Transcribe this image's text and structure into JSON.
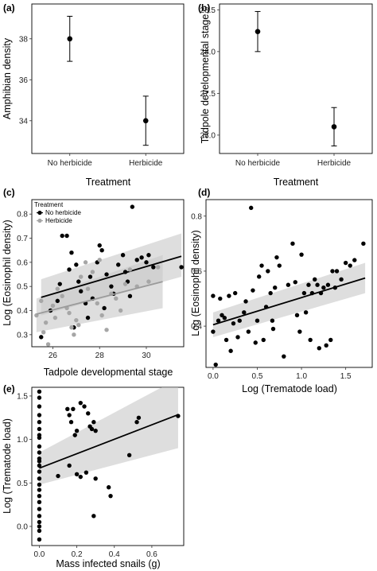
{
  "chart_data": [
    {
      "panel": "(a)",
      "type": "scatter",
      "xlabel": "Treatment",
      "ylabel": "Amphibian density",
      "categories": [
        "No herbicide",
        "Herbicide"
      ],
      "series": [
        {
          "mean": [
            38.0,
            34.0
          ],
          "lower": [
            36.9,
            32.8
          ],
          "upper": [
            39.1,
            35.2
          ]
        }
      ],
      "ylim": [
        32.4,
        39.7
      ],
      "yticks": [
        "34",
        "36",
        "38"
      ],
      "grid": false
    },
    {
      "panel": "(b)",
      "type": "scatter",
      "xlabel": "Treatment",
      "ylabel": "Tadpole developmental stage",
      "categories": [
        "No herbicide",
        "Herbicide"
      ],
      "series": [
        {
          "mean": [
            28.24,
            27.1
          ],
          "lower": [
            28.0,
            26.87
          ],
          "upper": [
            28.48,
            27.33
          ]
        }
      ],
      "ylim": [
        26.78,
        28.57
      ],
      "yticks": [
        "27.0",
        "27.5",
        "28.0",
        "28.5"
      ],
      "grid": false
    },
    {
      "panel": "(c)",
      "type": "scatter",
      "xlabel": "Tadpole developmental stage",
      "ylabel": "Log (Eosinophil density)",
      "xlim": [
        25.1,
        31.6
      ],
      "ylim": [
        0.25,
        0.86
      ],
      "xticks": [
        "26",
        "28",
        "30"
      ],
      "yticks": [
        "0.3",
        "0.4",
        "0.5",
        "0.6",
        "0.7",
        "0.8"
      ],
      "legend": {
        "title": "Treatment",
        "placement": "top-left"
      },
      "series": [
        {
          "name": "No herbicide",
          "color": "#000000",
          "points": [
            [
              25.5,
              0.29
            ],
            [
              25.9,
              0.4
            ],
            [
              26.2,
              0.44
            ],
            [
              26.3,
              0.51
            ],
            [
              26.4,
              0.71
            ],
            [
              26.6,
              0.71
            ],
            [
              26.7,
              0.57
            ],
            [
              26.8,
              0.64
            ],
            [
              27.0,
              0.59
            ],
            [
              27.1,
              0.52
            ],
            [
              27.2,
              0.48
            ],
            [
              27.4,
              0.43
            ],
            [
              27.5,
              0.37
            ],
            [
              27.7,
              0.45
            ],
            [
              27.9,
              0.6
            ],
            [
              28.0,
              0.67
            ],
            [
              28.1,
              0.65
            ],
            [
              28.3,
              0.55
            ],
            [
              28.5,
              0.5
            ],
            [
              28.6,
              0.47
            ],
            [
              28.8,
              0.59
            ],
            [
              29.0,
              0.63
            ],
            [
              29.1,
              0.56
            ],
            [
              29.2,
              0.52
            ],
            [
              29.4,
              0.83
            ],
            [
              29.6,
              0.61
            ],
            [
              29.8,
              0.62
            ],
            [
              30.0,
              0.6
            ],
            [
              30.3,
              0.58
            ],
            [
              31.5,
              0.58
            ],
            [
              26.9,
              0.33
            ],
            [
              28.2,
              0.41
            ],
            [
              29.3,
              0.46
            ],
            [
              27.6,
              0.54
            ],
            [
              30.1,
              0.63
            ]
          ],
          "fit": {
            "x": [
              25.5,
              31.5
            ],
            "y": [
              0.455,
              0.625
            ]
          },
          "ci_lower": [
            0.38,
            0.54
          ],
          "ci_upper": [
            0.53,
            0.72
          ]
        },
        {
          "name": "Herbicide",
          "color": "#a6a6a6",
          "points": [
            [
              25.3,
              0.38
            ],
            [
              25.5,
              0.44
            ],
            [
              25.7,
              0.35
            ],
            [
              25.8,
              0.26
            ],
            [
              26.0,
              0.42
            ],
            [
              26.1,
              0.37
            ],
            [
              26.2,
              0.49
            ],
            [
              26.4,
              0.46
            ],
            [
              26.6,
              0.41
            ],
            [
              26.7,
              0.39
            ],
            [
              26.8,
              0.33
            ],
            [
              26.9,
              0.3
            ],
            [
              27.1,
              0.34
            ],
            [
              27.2,
              0.54
            ],
            [
              27.4,
              0.6
            ],
            [
              27.5,
              0.49
            ],
            [
              27.7,
              0.56
            ],
            [
              27.9,
              0.43
            ],
            [
              28.1,
              0.38
            ],
            [
              28.3,
              0.32
            ],
            [
              28.5,
              0.47
            ],
            [
              28.7,
              0.45
            ],
            [
              28.9,
              0.4
            ],
            [
              29.1,
              0.51
            ],
            [
              29.3,
              0.57
            ],
            [
              29.6,
              0.5
            ],
            [
              30.1,
              0.52
            ],
            [
              30.5,
              0.58
            ],
            [
              25.6,
              0.31
            ],
            [
              27.0,
              0.36
            ],
            [
              28.0,
              0.61
            ]
          ],
          "fit": {
            "x": [
              25.3,
              30.7
            ],
            "y": [
              0.385,
              0.52
            ]
          },
          "ci_lower": [
            0.31,
            0.41
          ],
          "ci_upper": [
            0.45,
            0.63
          ]
        }
      ]
    },
    {
      "panel": "(d)",
      "type": "scatter",
      "xlabel": "Log (Trematode load)",
      "ylabel": "Log (Eosinophil density)",
      "xlim": [
        -0.08,
        1.8
      ],
      "ylim": [
        0.25,
        0.86
      ],
      "xticks": [
        "0.0",
        "0.5",
        "1.0",
        "1.5"
      ],
      "yticks": [
        "0.4",
        "0.6",
        "0.8"
      ],
      "series": [
        {
          "color": "#000000",
          "points": [
            [
              0.0,
              0.51
            ],
            [
              0.0,
              0.38
            ],
            [
              0.03,
              0.26
            ],
            [
              0.06,
              0.42
            ],
            [
              0.08,
              0.5
            ],
            [
              0.1,
              0.44
            ],
            [
              0.13,
              0.43
            ],
            [
              0.15,
              0.35
            ],
            [
              0.18,
              0.51
            ],
            [
              0.2,
              0.31
            ],
            [
              0.23,
              0.41
            ],
            [
              0.25,
              0.52
            ],
            [
              0.3,
              0.42
            ],
            [
              0.35,
              0.45
            ],
            [
              0.37,
              0.49
            ],
            [
              0.4,
              0.38
            ],
            [
              0.43,
              0.83
            ],
            [
              0.45,
              0.53
            ],
            [
              0.48,
              0.34
            ],
            [
              0.5,
              0.42
            ],
            [
              0.52,
              0.58
            ],
            [
              0.55,
              0.62
            ],
            [
              0.57,
              0.35
            ],
            [
              0.6,
              0.47
            ],
            [
              0.62,
              0.6
            ],
            [
              0.65,
              0.52
            ],
            [
              0.67,
              0.42
            ],
            [
              0.7,
              0.54
            ],
            [
              0.72,
              0.65
            ],
            [
              0.75,
              0.62
            ],
            [
              0.8,
              0.29
            ],
            [
              0.85,
              0.55
            ],
            [
              0.9,
              0.7
            ],
            [
              0.93,
              0.56
            ],
            [
              0.95,
              0.44
            ],
            [
              0.98,
              0.38
            ],
            [
              1.0,
              0.66
            ],
            [
              1.03,
              0.52
            ],
            [
              1.05,
              0.45
            ],
            [
              1.08,
              0.55
            ],
            [
              1.1,
              0.35
            ],
            [
              1.12,
              0.52
            ],
            [
              1.15,
              0.57
            ],
            [
              1.18,
              0.55
            ],
            [
              1.2,
              0.32
            ],
            [
              1.22,
              0.52
            ],
            [
              1.25,
              0.54
            ],
            [
              1.28,
              0.33
            ],
            [
              1.3,
              0.55
            ],
            [
              1.33,
              0.35
            ],
            [
              1.35,
              0.6
            ],
            [
              1.4,
              0.6
            ],
            [
              1.45,
              0.57
            ],
            [
              1.5,
              0.63
            ],
            [
              1.55,
              0.62
            ],
            [
              1.6,
              0.64
            ],
            [
              1.7,
              0.7
            ],
            [
              0.28,
              0.36
            ],
            [
              0.68,
              0.39
            ],
            [
              1.38,
              0.54
            ]
          ],
          "fit": {
            "x": [
              0.0,
              1.72
            ],
            "y": [
              0.405,
              0.575
            ]
          },
          "ci_lower": [
            0.36,
            0.52
          ],
          "ci_upper": [
            0.45,
            0.63
          ]
        }
      ]
    },
    {
      "panel": "(e)",
      "type": "scatter",
      "xlabel": "Mass infected snails (g)",
      "ylabel": "Log (Trematode load)",
      "xlim": [
        -0.04,
        0.77
      ],
      "ylim": [
        -0.22,
        1.6
      ],
      "xticks": [
        "0.0",
        "0.2",
        "0.4",
        "0.6"
      ],
      "yticks": [
        "0.0",
        "0.5",
        "1.0",
        "1.5"
      ],
      "series": [
        {
          "color": "#000000",
          "points": [
            [
              0.0,
              1.55
            ],
            [
              0.0,
              1.48
            ],
            [
              0.0,
              1.38
            ],
            [
              0.0,
              1.28
            ],
            [
              0.0,
              1.2
            ],
            [
              0.0,
              1.12
            ],
            [
              0.0,
              1.02
            ],
            [
              0.0,
              0.92
            ],
            [
              0.0,
              0.85
            ],
            [
              0.0,
              0.78
            ],
            [
              0.0,
              0.7
            ],
            [
              0.0,
              0.63
            ],
            [
              0.0,
              0.55
            ],
            [
              0.0,
              0.48
            ],
            [
              0.0,
              0.42
            ],
            [
              0.0,
              0.35
            ],
            [
              0.0,
              0.28
            ],
            [
              0.0,
              0.2
            ],
            [
              0.0,
              0.12
            ],
            [
              0.0,
              0.05
            ],
            [
              0.0,
              -0.05
            ],
            [
              0.0,
              -0.15
            ],
            [
              0.0,
              0.0
            ],
            [
              0.15,
              1.35
            ],
            [
              0.16,
              1.28
            ],
            [
              0.17,
              1.2
            ],
            [
              0.18,
              1.35
            ],
            [
              0.19,
              1.05
            ],
            [
              0.2,
              1.1
            ],
            [
              0.2,
              0.6
            ],
            [
              0.22,
              0.57
            ],
            [
              0.22,
              1.42
            ],
            [
              0.24,
              1.38
            ],
            [
              0.25,
              0.62
            ],
            [
              0.26,
              1.3
            ],
            [
              0.27,
              1.15
            ],
            [
              0.28,
              1.12
            ],
            [
              0.29,
              0.12
            ],
            [
              0.29,
              1.2
            ],
            [
              0.3,
              0.55
            ],
            [
              0.3,
              1.1
            ],
            [
              0.37,
              0.45
            ],
            [
              0.38,
              0.35
            ],
            [
              0.48,
              0.82
            ],
            [
              0.52,
              1.2
            ],
            [
              0.53,
              1.25
            ],
            [
              0.74,
              1.27
            ],
            [
              0.1,
              0.58
            ],
            [
              0.16,
              0.7
            ],
            [
              0.0,
              0.75
            ],
            [
              0.0,
              1.05
            ]
          ],
          "fit": {
            "x": [
              0.0,
              0.74
            ],
            "y": [
              0.67,
              1.285
            ]
          },
          "ci_lower": [
            0.48,
            0.9
          ],
          "ci_upper": [
            0.85,
            1.7
          ]
        }
      ]
    }
  ]
}
